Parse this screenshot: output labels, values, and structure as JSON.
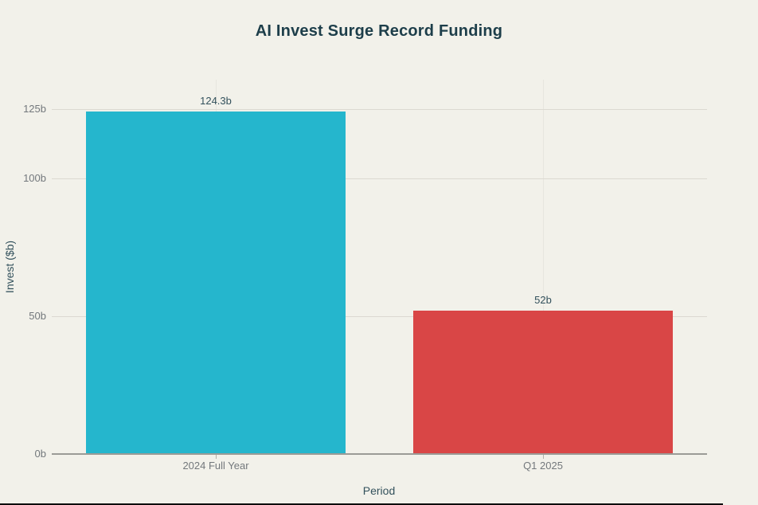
{
  "chart_data": {
    "type": "bar",
    "title": "AI Invest Surge Record Funding",
    "xlabel": "Period",
    "ylabel": "Invest ($b)",
    "categories": [
      "2024 Full Year",
      "Q1 2025"
    ],
    "values": [
      124.3,
      52
    ],
    "value_labels": [
      "124.3b",
      "52b"
    ],
    "bar_colors": [
      "#25b6cd",
      "#d94646"
    ],
    "ylim": [
      0,
      135.8
    ],
    "yticks": [
      {
        "value": 0,
        "label": "0b"
      },
      {
        "value": 50,
        "label": "50b"
      },
      {
        "value": 100,
        "label": "100b"
      },
      {
        "value": 125,
        "label": "125b"
      }
    ],
    "grid": {
      "horizontal": true,
      "vertical_at_category_centers": true
    },
    "legend": "none"
  },
  "colors": {
    "background": "#f2f1ea",
    "title_text": "#1d3e4a",
    "axis_title_text": "#33515c",
    "tick_label_text": "#73787c",
    "value_label_text": "#33515c",
    "gridline_horizontal": "#dcd9d1",
    "gridline_vertical": "#e7e5de",
    "axis_line": "#9b9b97",
    "bar_teal": "#25b6cd",
    "bar_red": "#d94646"
  }
}
